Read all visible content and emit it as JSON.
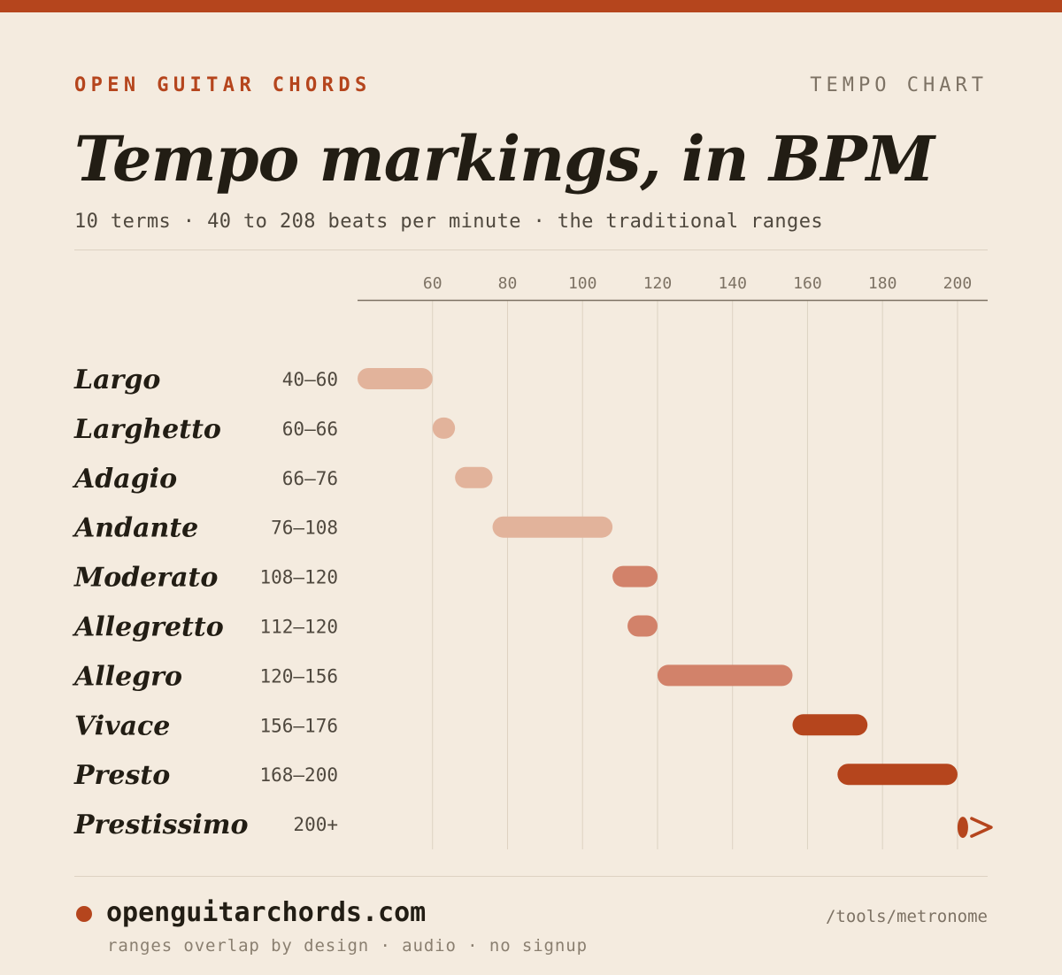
{
  "header": {
    "brand": "OPEN GUITAR CHORDS",
    "kind": "TEMPO CHART",
    "title": "Tempo markings, in BPM",
    "subtitle": "10 terms · 40 to 208 beats per minute · the traditional ranges"
  },
  "colors": {
    "accent": "#b5451d",
    "slow": "#e2b39b",
    "medium": "#d2826a",
    "fast": "#b5451d",
    "background": "#f4ebdf"
  },
  "chart_data": {
    "type": "bar",
    "orientation": "horizontal-range",
    "title": "Tempo markings, in BPM",
    "x_ticks": [
      60,
      80,
      100,
      120,
      140,
      160,
      180,
      200
    ],
    "xlim": [
      40,
      208
    ],
    "grid": true,
    "rows": [
      {
        "term": "Largo",
        "range_label": "40–60",
        "start": 40,
        "end": 60,
        "group": "slow"
      },
      {
        "term": "Larghetto",
        "range_label": "60–66",
        "start": 60,
        "end": 66,
        "group": "slow"
      },
      {
        "term": "Adagio",
        "range_label": "66–76",
        "start": 66,
        "end": 76,
        "group": "slow"
      },
      {
        "term": "Andante",
        "range_label": "76–108",
        "start": 76,
        "end": 108,
        "group": "slow"
      },
      {
        "term": "Moderato",
        "range_label": "108–120",
        "start": 108,
        "end": 120,
        "group": "medium"
      },
      {
        "term": "Allegretto",
        "range_label": "112–120",
        "start": 112,
        "end": 120,
        "group": "medium"
      },
      {
        "term": "Allegro",
        "range_label": "120–156",
        "start": 120,
        "end": 156,
        "group": "medium"
      },
      {
        "term": "Vivace",
        "range_label": "156–176",
        "start": 156,
        "end": 176,
        "group": "fast"
      },
      {
        "term": "Presto",
        "range_label": "168–200",
        "start": 168,
        "end": 200,
        "group": "fast"
      },
      {
        "term": "Prestissimo",
        "range_label": "200+",
        "start": 200,
        "end": null,
        "open_ended": true,
        "group": "fast"
      }
    ]
  },
  "footer": {
    "site": "openguitarchords.com",
    "tagline": "ranges overlap by design · audio · no signup",
    "path": "/tools/metronome"
  }
}
